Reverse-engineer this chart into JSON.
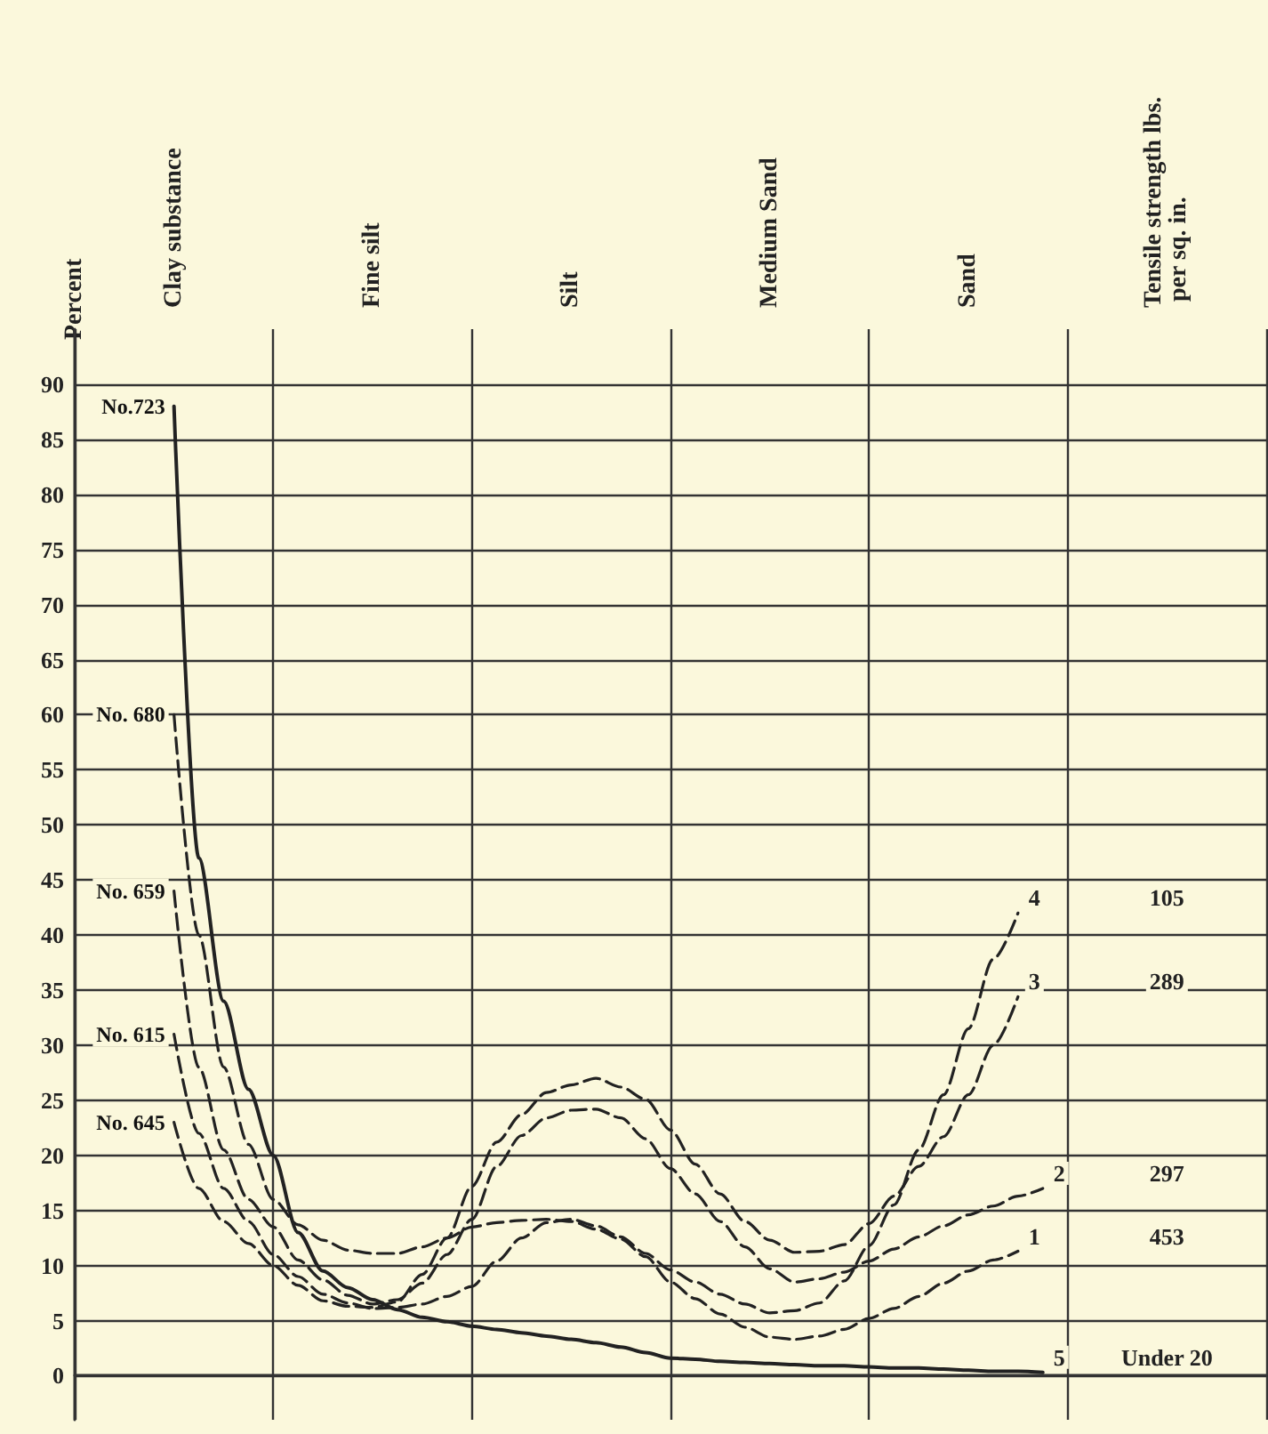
{
  "chart_data": {
    "type": "line",
    "ylabel": "Percent",
    "ylim": [
      -4,
      95
    ],
    "categories": [
      null,
      null,
      null,
      null,
      "Clay substance",
      null,
      null,
      null,
      null,
      null,
      null,
      null,
      "Fine silt",
      null,
      null,
      null,
      null,
      null,
      null,
      null,
      "Silt",
      null,
      null,
      null,
      null,
      null,
      null,
      null,
      "Medium Sand",
      null,
      null,
      null,
      null,
      null,
      null,
      null,
      "Sand",
      null,
      null,
      null,
      null,
      null,
      null,
      null,
      "Tensile strength lbs. per sq. in.",
      null,
      null,
      null,
      null
    ],
    "yticks": [
      0,
      5,
      10,
      15,
      20,
      25,
      30,
      35,
      40,
      45,
      50,
      55,
      60,
      65,
      70,
      75,
      80,
      85,
      90
    ],
    "grid": true,
    "marker": "none",
    "series": [
      {
        "name": "No.723",
        "color": "#222222",
        "line_style": "solid",
        "values": [
          null,
          null,
          null,
          null,
          88,
          47,
          34,
          26,
          20,
          13,
          9.5,
          8,
          6.9,
          6,
          5.3,
          4.9,
          4.5,
          4.2,
          3.9,
          3.6,
          3.3,
          3.0,
          2.6,
          2.1,
          1.6,
          1.5,
          1.3,
          1.2,
          1.1,
          1.0,
          0.9,
          0.9,
          0.8,
          0.7,
          0.7,
          0.6,
          0.5,
          0.4,
          0.4,
          0.3,
          null,
          null,
          null,
          null,
          null,
          null,
          null,
          null,
          null
        ]
      },
      {
        "name": "No. 680",
        "color": "#222222",
        "line_style": "dashed",
        "values": [
          null,
          null,
          null,
          null,
          60,
          40,
          28,
          21,
          16,
          13.7,
          12.3,
          11.4,
          11.1,
          11.1,
          11.7,
          12.5,
          13.5,
          13.9,
          14.1,
          14.2,
          14,
          13.3,
          12.4,
          10.8,
          8.5,
          7,
          5.6,
          4.4,
          3.5,
          3.3,
          3.6,
          4.2,
          5.2,
          6.1,
          7.2,
          8.4,
          9.5,
          10.5,
          11.3,
          null,
          null,
          null,
          null,
          null,
          null,
          null,
          null,
          null,
          null
        ]
      },
      {
        "name": "No. 659",
        "color": "#222222",
        "line_style": "dashed",
        "values": [
          null,
          null,
          null,
          null,
          44,
          28,
          20.5,
          16,
          13.5,
          10.5,
          8.7,
          7.3,
          6.5,
          6.9,
          8.4,
          11,
          14.2,
          19,
          21.8,
          23.4,
          24.1,
          24.2,
          23.4,
          21.5,
          18.8,
          16.5,
          14,
          11.7,
          9.7,
          8.5,
          8.8,
          9.4,
          10.4,
          11.5,
          12.6,
          13.6,
          14.6,
          15.4,
          16.3,
          17,
          null,
          null,
          null,
          null,
          null,
          null,
          null,
          null,
          null
        ]
      },
      {
        "name": "No. 615",
        "color": "#222222",
        "line_style": "dashed",
        "values": [
          null,
          null,
          null,
          null,
          31,
          22,
          17,
          14,
          11,
          9,
          7.4,
          6.6,
          6.1,
          6.2,
          6.5,
          7.2,
          8.1,
          10.4,
          12.5,
          13.9,
          14.2,
          13.6,
          12.6,
          11.1,
          9.6,
          8.5,
          7.4,
          6.5,
          5.7,
          5.9,
          6.6,
          8.6,
          11.8,
          15.5,
          20.5,
          25.5,
          31.5,
          37.8,
          42,
          null,
          null,
          null,
          null,
          null,
          null,
          null,
          null,
          null,
          null
        ]
      },
      {
        "name": "No. 645",
        "color": "#222222",
        "line_style": "dashed",
        "values": [
          null,
          null,
          null,
          null,
          23,
          17,
          14,
          12,
          10,
          8.2,
          6.8,
          6.3,
          6.2,
          6.7,
          9.2,
          12.5,
          17.2,
          21.2,
          23.7,
          25.7,
          26.4,
          27,
          26.2,
          25.1,
          22.3,
          19.2,
          16.5,
          14,
          12.3,
          11.2,
          11.3,
          11.9,
          13.8,
          16.3,
          19,
          21.7,
          25.5,
          30,
          34.4,
          null,
          null,
          null,
          null,
          null,
          null,
          null,
          null,
          null,
          null
        ]
      }
    ],
    "annotations": [
      "5",
      "1",
      "2",
      "4",
      "3",
      "Under 20",
      "453",
      "297",
      "105",
      "289"
    ]
  }
}
